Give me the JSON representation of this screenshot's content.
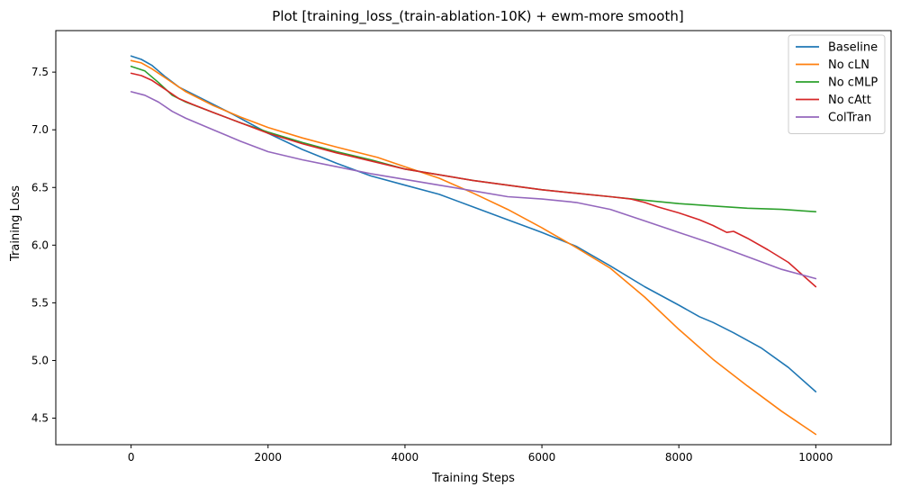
{
  "chart_data": {
    "type": "line",
    "title": "Plot [training_loss_(train-ablation-10K) + ewm-more smooth]",
    "xlabel": "Training Steps",
    "ylabel": "Training Loss",
    "xlim": [
      -1100,
      11100
    ],
    "ylim": [
      4.27,
      7.86
    ],
    "xticks": [
      0,
      2000,
      4000,
      6000,
      8000,
      10000
    ],
    "yticks": [
      4.5,
      5.0,
      5.5,
      6.0,
      6.5,
      7.0,
      7.5
    ],
    "grid": false,
    "legend_position": "top-right",
    "series": [
      {
        "name": "Baseline",
        "color": "#1f77b4",
        "points": [
          [
            0,
            7.64
          ],
          [
            150,
            7.61
          ],
          [
            300,
            7.56
          ],
          [
            500,
            7.46
          ],
          [
            700,
            7.37
          ],
          [
            900,
            7.31
          ],
          [
            1200,
            7.22
          ],
          [
            1500,
            7.13
          ],
          [
            2000,
            6.97
          ],
          [
            2500,
            6.83
          ],
          [
            3000,
            6.71
          ],
          [
            3500,
            6.6
          ],
          [
            4000,
            6.52
          ],
          [
            4500,
            6.44
          ],
          [
            5000,
            6.33
          ],
          [
            5500,
            6.22
          ],
          [
            6000,
            6.11
          ],
          [
            6500,
            5.99
          ],
          [
            7000,
            5.82
          ],
          [
            7500,
            5.64
          ],
          [
            8000,
            5.48
          ],
          [
            8300,
            5.38
          ],
          [
            8500,
            5.33
          ],
          [
            8800,
            5.24
          ],
          [
            9200,
            5.11
          ],
          [
            9600,
            4.94
          ],
          [
            10000,
            4.73
          ]
        ]
      },
      {
        "name": "No cLN",
        "color": "#ff7f0e",
        "points": [
          [
            0,
            7.6
          ],
          [
            150,
            7.58
          ],
          [
            300,
            7.53
          ],
          [
            500,
            7.45
          ],
          [
            800,
            7.33
          ],
          [
            1200,
            7.21
          ],
          [
            1600,
            7.11
          ],
          [
            2000,
            7.02
          ],
          [
            2500,
            6.93
          ],
          [
            3000,
            6.85
          ],
          [
            3600,
            6.76
          ],
          [
            4000,
            6.68
          ],
          [
            4500,
            6.58
          ],
          [
            5000,
            6.45
          ],
          [
            5500,
            6.31
          ],
          [
            6000,
            6.15
          ],
          [
            6500,
            5.98
          ],
          [
            7000,
            5.8
          ],
          [
            7500,
            5.55
          ],
          [
            8000,
            5.27
          ],
          [
            8500,
            5.01
          ],
          [
            9000,
            4.78
          ],
          [
            9500,
            4.56
          ],
          [
            10000,
            4.36
          ]
        ]
      },
      {
        "name": "No cMLP",
        "color": "#2ca02c",
        "points": [
          [
            0,
            7.55
          ],
          [
            200,
            7.51
          ],
          [
            400,
            7.41
          ],
          [
            600,
            7.3
          ],
          [
            800,
            7.24
          ],
          [
            1200,
            7.15
          ],
          [
            1600,
            7.06
          ],
          [
            2000,
            6.98
          ],
          [
            2500,
            6.89
          ],
          [
            3000,
            6.81
          ],
          [
            3500,
            6.74
          ],
          [
            4000,
            6.66
          ],
          [
            4500,
            6.61
          ],
          [
            5000,
            6.56
          ],
          [
            5500,
            6.52
          ],
          [
            6000,
            6.48
          ],
          [
            6500,
            6.45
          ],
          [
            7000,
            6.42
          ],
          [
            7500,
            6.39
          ],
          [
            8000,
            6.36
          ],
          [
            8500,
            6.34
          ],
          [
            9000,
            6.32
          ],
          [
            9500,
            6.31
          ],
          [
            10000,
            6.29
          ]
        ]
      },
      {
        "name": "No cAtt",
        "color": "#d62728",
        "points": [
          [
            0,
            7.49
          ],
          [
            150,
            7.47
          ],
          [
            300,
            7.43
          ],
          [
            500,
            7.35
          ],
          [
            700,
            7.27
          ],
          [
            900,
            7.22
          ],
          [
            1200,
            7.15
          ],
          [
            1600,
            7.06
          ],
          [
            2000,
            6.97
          ],
          [
            2500,
            6.88
          ],
          [
            3000,
            6.8
          ],
          [
            3500,
            6.73
          ],
          [
            4000,
            6.66
          ],
          [
            4500,
            6.61
          ],
          [
            5000,
            6.56
          ],
          [
            5500,
            6.52
          ],
          [
            6000,
            6.48
          ],
          [
            6500,
            6.45
          ],
          [
            7000,
            6.42
          ],
          [
            7300,
            6.4
          ],
          [
            7500,
            6.37
          ],
          [
            7700,
            6.33
          ],
          [
            8000,
            6.28
          ],
          [
            8300,
            6.22
          ],
          [
            8500,
            6.17
          ],
          [
            8700,
            6.11
          ],
          [
            8800,
            6.12
          ],
          [
            9000,
            6.06
          ],
          [
            9300,
            5.96
          ],
          [
            9600,
            5.85
          ],
          [
            10000,
            5.64
          ]
        ]
      },
      {
        "name": "ColTran",
        "color": "#9467bd",
        "points": [
          [
            0,
            7.33
          ],
          [
            200,
            7.3
          ],
          [
            400,
            7.24
          ],
          [
            600,
            7.16
          ],
          [
            800,
            7.1
          ],
          [
            1200,
            7.0
          ],
          [
            1600,
            6.9
          ],
          [
            2000,
            6.81
          ],
          [
            2500,
            6.74
          ],
          [
            3000,
            6.68
          ],
          [
            3500,
            6.62
          ],
          [
            4000,
            6.57
          ],
          [
            4500,
            6.52
          ],
          [
            5000,
            6.47
          ],
          [
            5500,
            6.42
          ],
          [
            6000,
            6.4
          ],
          [
            6500,
            6.37
          ],
          [
            7000,
            6.31
          ],
          [
            7500,
            6.21
          ],
          [
            8000,
            6.11
          ],
          [
            8500,
            6.01
          ],
          [
            9000,
            5.9
          ],
          [
            9500,
            5.79
          ],
          [
            10000,
            5.71
          ]
        ]
      }
    ]
  }
}
